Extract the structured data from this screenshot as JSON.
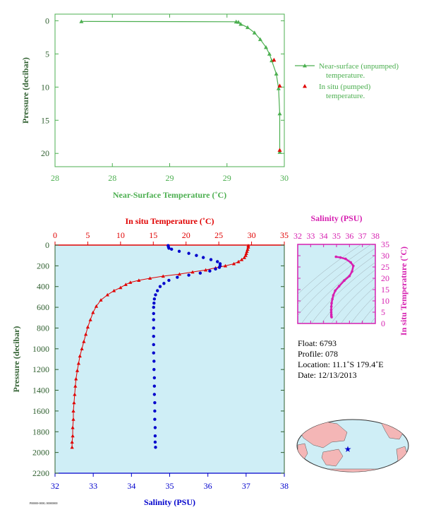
{
  "colors": {
    "green": "#4caf50",
    "darkgreen": "#2f5f2f",
    "red": "#e00000",
    "blue": "#0000cc",
    "magenta": "#d61fb0",
    "bg": "#cfeef6",
    "land": "#f4b6b6"
  },
  "chart_data": [
    {
      "type": "line",
      "name": "near-surface",
      "xlabel": "Near-Surface Temperature (˚C)",
      "ylabel": "Pressure (decibar)",
      "xlim": [
        28,
        30
      ],
      "ylim": [
        22,
        -1
      ],
      "xticks": [
        28,
        28.5,
        29,
        29.5,
        30
      ],
      "xtick_labels": [
        "28",
        "28",
        "29",
        "29",
        "30"
      ],
      "yticks": [
        0,
        5,
        10,
        15,
        20
      ],
      "series": [
        {
          "name": "Near-surface (unpumped) temperature.",
          "marker": "triangle",
          "color": "#4caf50",
          "points": [
            [
              28.23,
              0.1
            ],
            [
              29.58,
              0.15
            ],
            [
              29.6,
              0.2
            ],
            [
              29.62,
              0.5
            ],
            [
              29.68,
              1
            ],
            [
              29.74,
              1.8
            ],
            [
              29.79,
              2.8
            ],
            [
              29.84,
              4
            ],
            [
              29.87,
              5
            ],
            [
              29.89,
              6
            ],
            [
              29.93,
              8
            ],
            [
              29.95,
              10.2
            ],
            [
              29.96,
              14
            ],
            [
              29.96,
              19.8
            ]
          ]
        },
        {
          "name": "In situ (pumped) temperature.",
          "marker": "triangle",
          "color": "#e00000",
          "points": [
            [
              29.91,
              5.9
            ],
            [
              29.96,
              9.8
            ],
            [
              29.96,
              19.5
            ]
          ]
        }
      ]
    },
    {
      "type": "line",
      "name": "profile",
      "x_top_label": "In situ Temperature (˚C)",
      "x_bottom_label": "Salinity (PSU)",
      "ylabel": "Pressure (decibar)",
      "temp_lim": [
        0,
        35
      ],
      "sal_lim": [
        32,
        38
      ],
      "ylim": [
        2200,
        0
      ],
      "temp_ticks": [
        0,
        5,
        10,
        15,
        20,
        25,
        30,
        35
      ],
      "sal_ticks": [
        32,
        33,
        34,
        35,
        36,
        37,
        38
      ],
      "pressure_ticks": [
        0,
        200,
        400,
        600,
        800,
        1000,
        1200,
        1400,
        1600,
        1800,
        2000,
        2200
      ],
      "temperature": [
        [
          29.5,
          5
        ],
        [
          29.5,
          20
        ],
        [
          29.4,
          40
        ],
        [
          29.3,
          60
        ],
        [
          29.2,
          80
        ],
        [
          29.1,
          100
        ],
        [
          28.9,
          120
        ],
        [
          28.5,
          140
        ],
        [
          28.0,
          160
        ],
        [
          27.3,
          180
        ],
        [
          26.0,
          200
        ],
        [
          24.5,
          220
        ],
        [
          23.0,
          240
        ],
        [
          21.0,
          260
        ],
        [
          19.0,
          280
        ],
        [
          16.5,
          300
        ],
        [
          14.5,
          320
        ],
        [
          12.8,
          340
        ],
        [
          11.5,
          360
        ],
        [
          10.8,
          380
        ],
        [
          10.0,
          410
        ],
        [
          9.0,
          440
        ],
        [
          8.0,
          480
        ],
        [
          7.0,
          530
        ],
        [
          6.3,
          590
        ],
        [
          5.8,
          650
        ],
        [
          5.4,
          720
        ],
        [
          5.0,
          790
        ],
        [
          4.7,
          860
        ],
        [
          4.4,
          930
        ],
        [
          4.1,
          1000
        ],
        [
          3.8,
          1070
        ],
        [
          3.6,
          1140
        ],
        [
          3.4,
          1210
        ],
        [
          3.2,
          1290
        ],
        [
          3.1,
          1360
        ],
        [
          3.0,
          1440
        ],
        [
          2.9,
          1520
        ],
        [
          2.8,
          1600
        ],
        [
          2.8,
          1680
        ],
        [
          2.7,
          1760
        ],
        [
          2.7,
          1840
        ],
        [
          2.6,
          1900
        ],
        [
          2.6,
          1950
        ]
      ],
      "salinity": [
        [
          34.96,
          5
        ],
        [
          34.97,
          20
        ],
        [
          34.98,
          30
        ],
        [
          35.05,
          40
        ],
        [
          35.25,
          60
        ],
        [
          35.5,
          80
        ],
        [
          35.7,
          100
        ],
        [
          35.88,
          120
        ],
        [
          36.08,
          140
        ],
        [
          36.25,
          160
        ],
        [
          36.32,
          180
        ],
        [
          36.32,
          200
        ],
        [
          36.3,
          215
        ],
        [
          36.2,
          230
        ],
        [
          36.05,
          250
        ],
        [
          35.8,
          270
        ],
        [
          35.5,
          290
        ],
        [
          35.2,
          310
        ],
        [
          34.98,
          340
        ],
        [
          34.85,
          370
        ],
        [
          34.75,
          400
        ],
        [
          34.68,
          440
        ],
        [
          34.63,
          480
        ],
        [
          34.6,
          520
        ],
        [
          34.59,
          560
        ],
        [
          34.58,
          600
        ],
        [
          34.58,
          660
        ],
        [
          34.58,
          720
        ],
        [
          34.58,
          800
        ],
        [
          34.58,
          880
        ],
        [
          34.58,
          960
        ],
        [
          34.58,
          1040
        ],
        [
          34.59,
          1120
        ],
        [
          34.59,
          1200
        ],
        [
          34.6,
          1280
        ],
        [
          34.6,
          1360
        ],
        [
          34.6,
          1440
        ],
        [
          34.61,
          1520
        ],
        [
          34.61,
          1600
        ],
        [
          34.61,
          1680
        ],
        [
          34.62,
          1760
        ],
        [
          34.62,
          1840
        ],
        [
          34.62,
          1900
        ],
        [
          34.63,
          1950
        ]
      ]
    },
    {
      "type": "scatter",
      "name": "ts-diagram",
      "xlabel": "Salinity (PSU)",
      "ylabel": "In situ Temperature (˚C)",
      "xlim": [
        32,
        38
      ],
      "ylim": [
        0,
        35
      ],
      "xticks": [
        32,
        33,
        34,
        35,
        36,
        37,
        38
      ],
      "yticks": [
        0,
        5,
        10,
        15,
        20,
        25,
        30,
        35
      ],
      "points": [
        [
          34.96,
          29.5
        ],
        [
          35.3,
          29.2
        ],
        [
          35.7,
          28.6
        ],
        [
          36.1,
          27.0
        ],
        [
          36.3,
          25.5
        ],
        [
          36.2,
          23
        ],
        [
          36.0,
          21
        ],
        [
          35.6,
          19
        ],
        [
          35.2,
          16.5
        ],
        [
          34.9,
          14.5
        ],
        [
          34.75,
          12.5
        ],
        [
          34.68,
          10.8
        ],
        [
          34.62,
          9
        ],
        [
          34.6,
          7.5
        ],
        [
          34.59,
          6
        ],
        [
          34.59,
          5
        ],
        [
          34.6,
          4
        ],
        [
          34.6,
          3.3
        ],
        [
          34.62,
          2.8
        ]
      ]
    }
  ],
  "info": {
    "float": "Float:  6793",
    "profile": "Profile:  078",
    "location": "Location:  11.1˚S  179.4˚E",
    "date": "Date:  12/13/2013"
  },
  "footer_code": "P00000-0000, 00000000"
}
